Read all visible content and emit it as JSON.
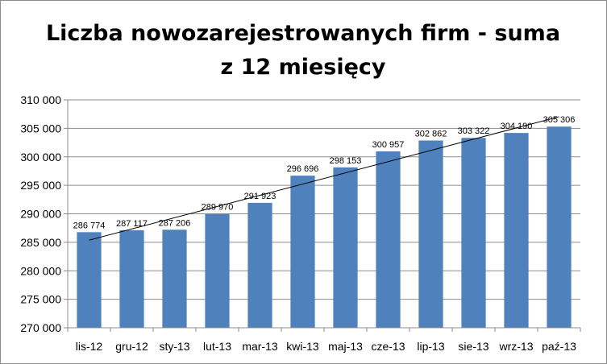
{
  "chart_data": {
    "type": "bar",
    "title_lines": [
      "Liczba nowozarejestrowanych firm - suma",
      "z 12 miesięcy"
    ],
    "categories": [
      "lis-12",
      "gru-12",
      "sty-13",
      "lut-13",
      "mar-13",
      "kwi-13",
      "maj-13",
      "cze-13",
      "lip-13",
      "sie-13",
      "wrz-13",
      "paź-13"
    ],
    "values": [
      286774,
      287117,
      287206,
      289970,
      291923,
      296696,
      298153,
      300957,
      302862,
      303322,
      304190,
      305306
    ],
    "value_labels": [
      "286 774",
      "287 117",
      "287 206",
      "289 970",
      "291 923",
      "296 696",
      "298 153",
      "300 957",
      "302 862",
      "303 322",
      "304 190",
      "305 306"
    ],
    "y_ticks": [
      270000,
      275000,
      280000,
      285000,
      290000,
      295000,
      300000,
      305000,
      310000
    ],
    "y_tick_labels": [
      "270 000",
      "275 000",
      "280 000",
      "285 000",
      "290 000",
      "295 000",
      "300 000",
      "305 000",
      "310 000"
    ],
    "ylim": [
      270000,
      310000
    ],
    "xlabel": "",
    "ylabel": "",
    "grid": true,
    "trendline": "linear",
    "colors": {
      "bar": "#4F81BD",
      "grid": "#8c8c8c",
      "trend": "#000000"
    }
  }
}
